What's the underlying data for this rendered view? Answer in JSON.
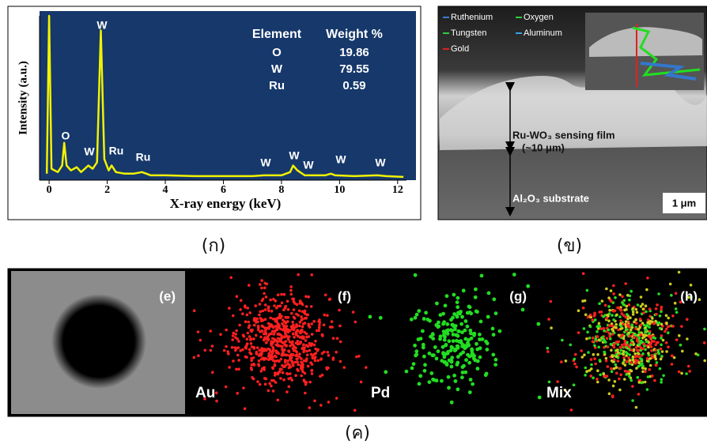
{
  "chart_data": {
    "type": "line",
    "x_label": "X-ray energy (keV)",
    "y_label": "Intensity (a.u.)",
    "x": [
      -0.08,
      0,
      0.08,
      0.3,
      0.45,
      0.52,
      0.6,
      0.75,
      0.95,
      1.1,
      1.35,
      1.5,
      1.65,
      1.78,
      1.9,
      2.05,
      2.15,
      2.3,
      2.6,
      2.9,
      3.2,
      3.5,
      4,
      5,
      6,
      7,
      7.4,
      8,
      8.3,
      8.4,
      8.55,
      8.8,
      9.5,
      9.7,
      9.85,
      10.5,
      11.3,
      11.6,
      12.2
    ],
    "values": [
      3,
      100,
      6,
      4,
      8,
      22,
      8,
      5,
      7,
      4,
      8,
      6,
      10,
      91,
      12,
      5,
      8,
      4,
      3,
      3,
      4,
      2,
      2,
      1.5,
      1.5,
      1.5,
      2,
      2,
      4,
      8,
      5,
      2,
      2,
      3,
      2,
      1.5,
      2,
      1.5,
      1
    ],
    "color": "#f2f200",
    "xlim": [
      -0.33,
      12.25
    ],
    "ylim": [
      0,
      100
    ],
    "xticks": [
      0,
      2,
      4,
      6,
      8,
      10,
      12
    ],
    "annotations": [
      "O",
      "W",
      "W",
      "Ru",
      "Ru",
      "W",
      "W",
      "W",
      "W",
      "W"
    ],
    "table": {
      "header": [
        "Element",
        "Weight %"
      ],
      "rows": [
        [
          "O",
          "19.86"
        ],
        [
          "W",
          "79.55"
        ],
        [
          "Ru",
          "0.59"
        ]
      ]
    }
  },
  "sem": {
    "legend": [
      "Ruthenium",
      "Oxygen",
      "Tungsten",
      "Aluminum",
      "Gold"
    ],
    "film": "Ru-WO₃ sensing film",
    "thickness": "(~10 μm)",
    "substrate": "Al₂O₃ substrate",
    "scale": "1 μm"
  },
  "mapping": {
    "panels": [
      {
        "tag": "(e)"
      },
      {
        "tag": "(f)",
        "label": "Au"
      },
      {
        "tag": "(g)",
        "label": "Pd"
      },
      {
        "tag": "(h)",
        "label": "Mix"
      }
    ]
  },
  "captions": [
    "(ก)",
    "(ข)",
    "(ค)"
  ]
}
